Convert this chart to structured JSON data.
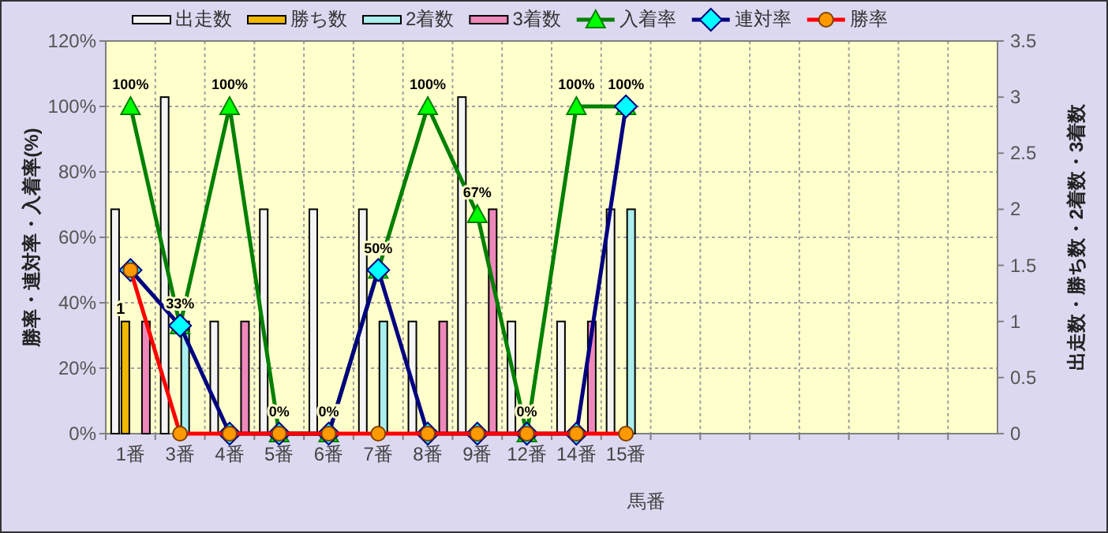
{
  "chart_data": {
    "type": "bar",
    "xlabel": "馬番",
    "ylabel": "勝率・連対率・入着率(%)",
    "y2label": "出走数・勝ち数・2着数・3着数",
    "categories": [
      "1番",
      "3番",
      "4番",
      "5番",
      "6番",
      "7番",
      "8番",
      "9番",
      "12番",
      "14番",
      "15番",
      null,
      null,
      null,
      null,
      null,
      null,
      null
    ],
    "ylim": [
      0,
      120
    ],
    "yticks": [
      {
        "value": 0,
        "label": "0%"
      },
      {
        "value": 20,
        "label": "20%"
      },
      {
        "value": 40,
        "label": "40%"
      },
      {
        "value": 60,
        "label": "60%"
      },
      {
        "value": 80,
        "label": "80%"
      },
      {
        "value": 100,
        "label": "100%"
      },
      {
        "value": 120,
        "label": "120%"
      }
    ],
    "y2lim": [
      0,
      3.5
    ],
    "y2ticks": [
      0,
      0.5,
      1,
      1.5,
      2,
      2.5,
      3,
      3.5
    ],
    "grid": true,
    "legend": "top",
    "series": [
      {
        "name": "出走数",
        "axis": "y2",
        "color": "#f4f4f4",
        "values": [
          2,
          3,
          1,
          2,
          2,
          2,
          1,
          3,
          1,
          1,
          2,
          null,
          null,
          null,
          null,
          null,
          null,
          null
        ]
      },
      {
        "name": "勝ち数",
        "axis": "y2",
        "color": "#f0b800",
        "values": [
          1,
          0,
          0,
          0,
          0,
          0,
          0,
          0,
          0,
          0,
          0,
          null,
          null,
          null,
          null,
          null,
          null,
          null
        ],
        "value_labels": [
          "1",
          null,
          null,
          null,
          null,
          null,
          null,
          null,
          null,
          null,
          null,
          null,
          null,
          null,
          null,
          null,
          null,
          null
        ]
      },
      {
        "name": "2着数",
        "axis": "y2",
        "color": "#aaeeee",
        "values": [
          0,
          1,
          0,
          0,
          0,
          1,
          0,
          0,
          0,
          0,
          2,
          null,
          null,
          null,
          null,
          null,
          null,
          null
        ]
      },
      {
        "name": "3着数",
        "axis": "y2",
        "color": "#ee88bb",
        "values": [
          1,
          0,
          1,
          0,
          0,
          0,
          1,
          2,
          0,
          1,
          0,
          null,
          null,
          null,
          null,
          null,
          null,
          null
        ]
      },
      {
        "name": "入着率",
        "type": "line",
        "color": "#008000",
        "marker": "triangle",
        "values": [
          100,
          33,
          100,
          0,
          0,
          50,
          100,
          67,
          0,
          100,
          100,
          null,
          null,
          null,
          null,
          null,
          null,
          null
        ],
        "value_labels": [
          "100%",
          "33%",
          "100%",
          "0%",
          "0%",
          "50%",
          "100%",
          "67%",
          "0%",
          "100%",
          "100%",
          null,
          null,
          null,
          null,
          null,
          null,
          null
        ]
      },
      {
        "name": "連対率",
        "type": "line",
        "color": "#000080",
        "marker": "diamond",
        "values": [
          50,
          33,
          0,
          0,
          0,
          50,
          0,
          0,
          0,
          0,
          100,
          null,
          null,
          null,
          null,
          null,
          null,
          null
        ]
      },
      {
        "name": "勝率",
        "type": "line",
        "color": "#ff0000",
        "marker": "circle",
        "values": [
          50,
          0,
          0,
          0,
          0,
          0,
          0,
          0,
          0,
          0,
          0,
          null,
          null,
          null,
          null,
          null,
          null,
          null
        ]
      }
    ]
  }
}
